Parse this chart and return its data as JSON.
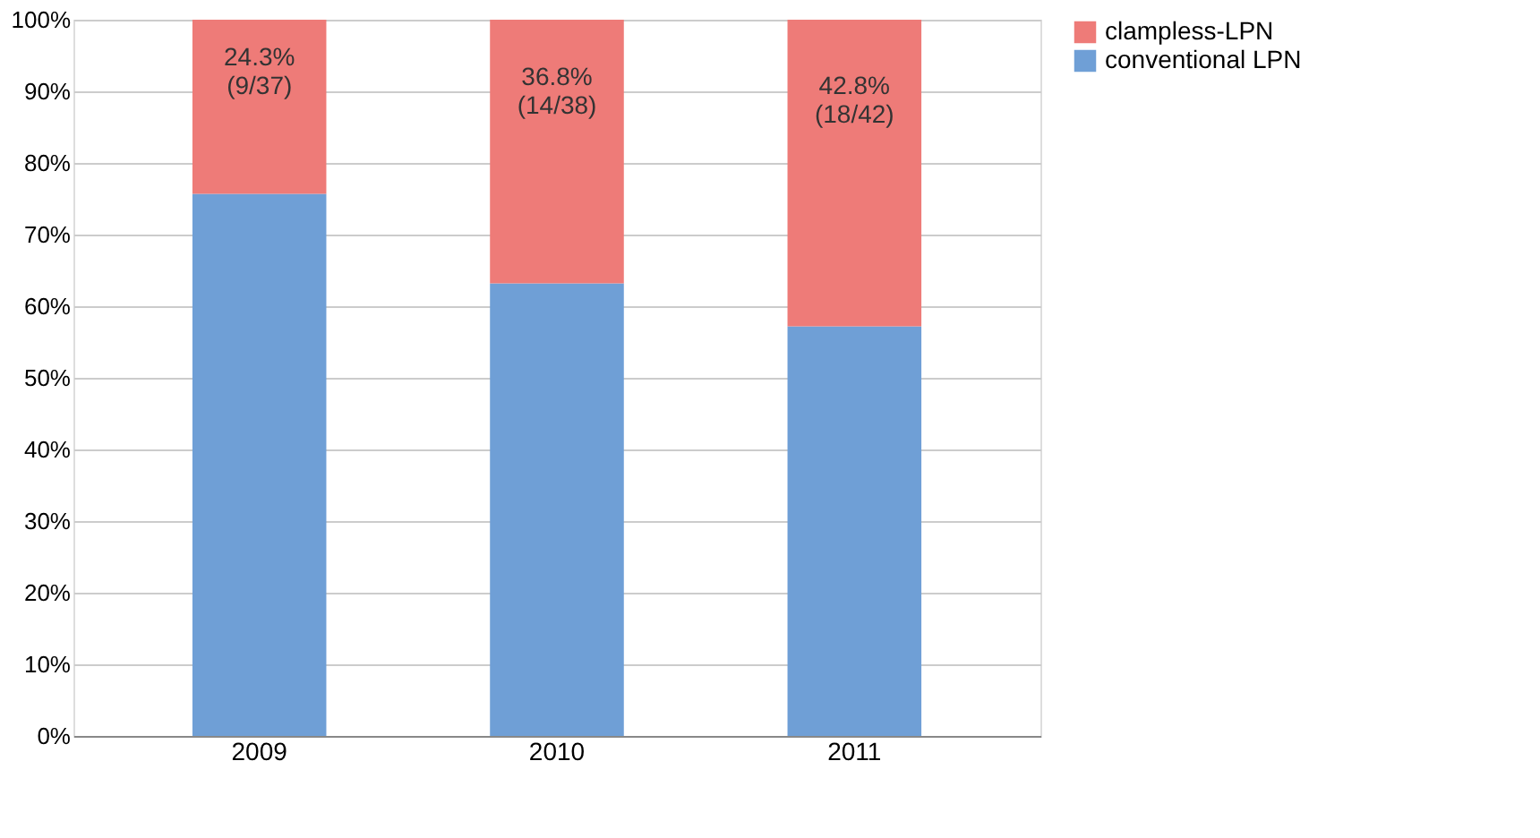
{
  "chart_data": {
    "type": "bar",
    "stacked": true,
    "categories": [
      "2009",
      "2010",
      "2011"
    ],
    "series": [
      {
        "name": "conventional LPN",
        "color": "#6f9fd6",
        "values": [
          75.7,
          63.2,
          57.2
        ]
      },
      {
        "name": "clampless-LPN",
        "color": "#ee7b78",
        "values": [
          24.3,
          36.8,
          42.8
        ],
        "value_labels": [
          "24.3%\n(9/37)",
          "36.8%\n(14/38)",
          "42.8%\n(18/42)"
        ]
      }
    ],
    "ylim": [
      0,
      100
    ],
    "yticks": [
      {
        "value": 0,
        "label": "0%"
      },
      {
        "value": 10,
        "label": "10%"
      },
      {
        "value": 20,
        "label": "20%"
      },
      {
        "value": 30,
        "label": "30%"
      },
      {
        "value": 40,
        "label": "40%"
      },
      {
        "value": 50,
        "label": "50%"
      },
      {
        "value": 60,
        "label": "60%"
      },
      {
        "value": 70,
        "label": "70%"
      },
      {
        "value": 80,
        "label": "80%"
      },
      {
        "value": 90,
        "label": "90%"
      },
      {
        "value": 100,
        "label": "100%"
      }
    ],
    "grid": "y",
    "legend": "right"
  }
}
